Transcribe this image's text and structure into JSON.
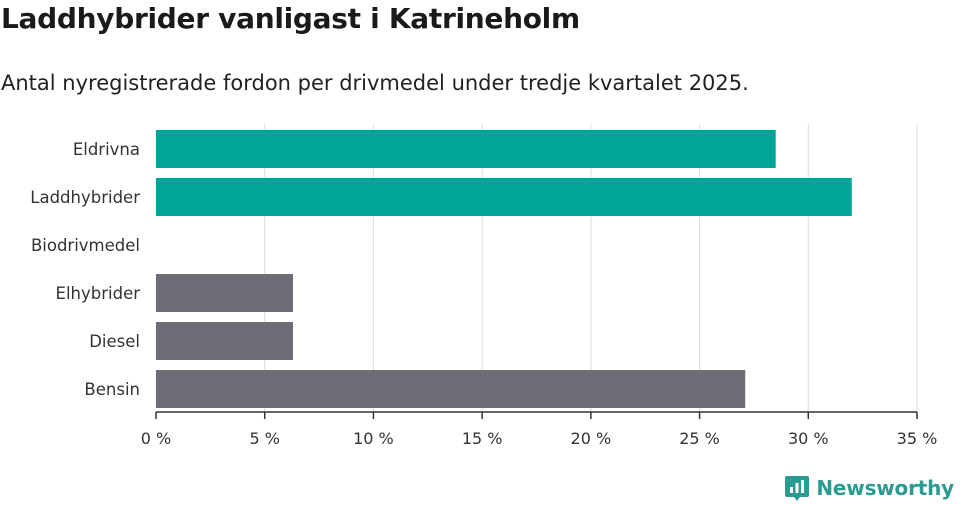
{
  "header": {
    "title": "Laddhybrider vanligast i Katrineholm",
    "subtitle": "Antal nyregistrerade fordon per drivmedel under tredje kvartalet 2025."
  },
  "brand": {
    "name": "Newsworthy",
    "icon": "newsworthy-logo-icon",
    "color": "#2b9b91"
  },
  "colors": {
    "highlight": "#00a598",
    "other": "#6e6d75",
    "grid": "#dcdcdc",
    "axis": "#333333"
  },
  "chart_data": {
    "type": "bar",
    "orientation": "horizontal",
    "title": "Laddhybrider vanligast i Katrineholm",
    "subtitle": "Antal nyregistrerade fordon per drivmedel under tredje kvartalet 2025.",
    "xlabel": "",
    "ylabel": "",
    "categories": [
      "Eldrivna",
      "Laddhybrider",
      "Biodrivmedel",
      "Elhybrider",
      "Diesel",
      "Bensin"
    ],
    "values": [
      28.5,
      32.0,
      0,
      6.3,
      6.3,
      27.1
    ],
    "highlighted": [
      true,
      true,
      true,
      false,
      false,
      false
    ],
    "xlim": [
      0,
      35
    ],
    "xticks": [
      0,
      5,
      10,
      15,
      20,
      25,
      30,
      35
    ],
    "tick_suffix": " %",
    "grid": true
  }
}
